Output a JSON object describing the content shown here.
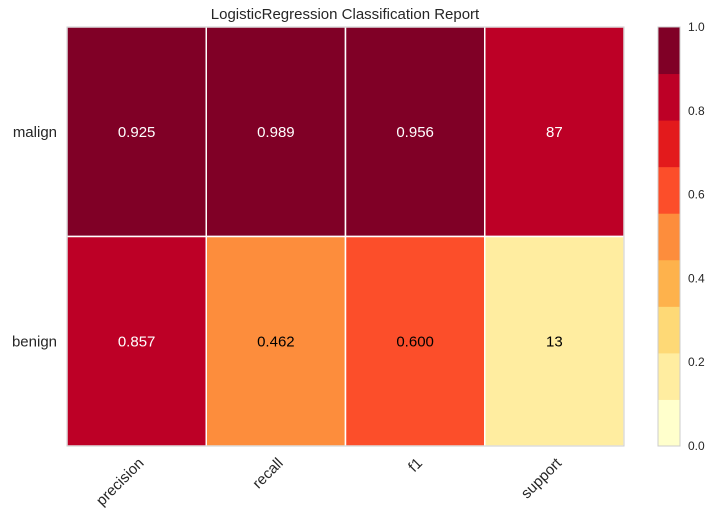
{
  "chart_data": {
    "type": "heatmap",
    "title": "LogisticRegression Classification Report",
    "columns": [
      "precision",
      "recall",
      "f1",
      "support"
    ],
    "rows": [
      "malign",
      "benign"
    ],
    "values": [
      [
        0.925,
        0.989,
        0.956,
        0.87
      ],
      [
        0.857,
        0.462,
        0.6,
        0.13
      ]
    ],
    "labels": [
      [
        "0.925",
        "0.989",
        "0.956",
        "87"
      ],
      [
        "0.857",
        "0.462",
        "0.600",
        "13"
      ]
    ],
    "colorbar": {
      "ticks": [
        "0.0",
        "0.2",
        "0.4",
        "0.6",
        "0.8",
        "1.0"
      ],
      "range": [
        0,
        1
      ],
      "bins": 9,
      "colors": [
        "#ffffcc",
        "#ffeda0",
        "#fed976",
        "#feb24c",
        "#fd8d3c",
        "#fc4e2a",
        "#e31a1c",
        "#bd0026",
        "#800026"
      ]
    },
    "grid": false
  }
}
